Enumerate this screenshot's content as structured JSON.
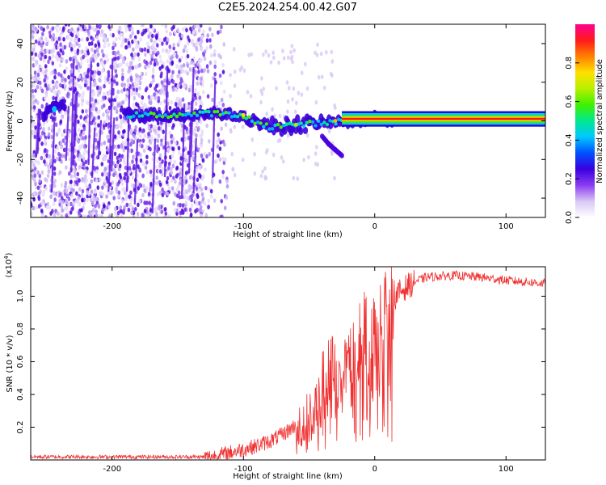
{
  "title": "C2E5.2024.254.00.42.G07",
  "chart_data": [
    {
      "type": "heatmap",
      "xlabel": "Height of straight line (km)",
      "ylabel": "Frequency (Hz)",
      "xlim": [
        -262,
        130
      ],
      "ylim": [
        -50,
        50
      ],
      "xticks": [
        -200,
        -100,
        0,
        100
      ],
      "yticks": [
        -40,
        -20,
        0,
        20,
        40
      ],
      "colorbar": {
        "label": "Normalized spectral amplitude",
        "ticks": [
          0.0,
          0.2,
          0.4,
          0.6,
          0.8
        ],
        "range": [
          0,
          1
        ],
        "colors": [
          "#ffffff",
          "#d9c8f5",
          "#8a3cf0",
          "#3a00e0",
          "#0050ff",
          "#00c8ff",
          "#00e890",
          "#40f000",
          "#b8f000",
          "#ffe000",
          "#ff8000",
          "#ff1a1a",
          "#ff0090"
        ]
      },
      "ridge": {
        "description_points_x": [
          -250,
          -240,
          -190,
          -150,
          -120,
          -100,
          -80,
          -60,
          -40,
          -20,
          0,
          15,
          130
        ],
        "description_points_y": [
          6,
          8,
          3,
          3,
          4,
          2,
          -3,
          -2,
          -1,
          0,
          1,
          1,
          1
        ],
        "branch_x": [
          -40,
          -35,
          -30,
          -25
        ],
        "branch_y": [
          -8,
          -12,
          -15,
          -18
        ]
      }
    },
    {
      "type": "line",
      "xlabel": "Height of straight line (km)",
      "ylabel": "SNR (10 * v/v)",
      "ymultiplier": "(x10",
      "ymultiplier_exp": "4",
      "ymultiplier_close": ")",
      "xlim": [
        -262,
        130
      ],
      "ylim": [
        0,
        1.18
      ],
      "xticks": [
        -200,
        -100,
        0,
        100
      ],
      "yticks": [
        0.2,
        0.4,
        0.6,
        0.8,
        1.0
      ],
      "color": "#f03030",
      "series": [
        {
          "x": [
            -262,
            -240,
            -200,
            -160,
            -130,
            -120,
            -110,
            -100,
            -90,
            -80,
            -70,
            -60,
            -50,
            -40,
            -35,
            -30,
            -25,
            -20,
            -15,
            -10,
            -5,
            0,
            5,
            10,
            15,
            20,
            25,
            30,
            40,
            60,
            80,
            100,
            130
          ],
          "y": [
            0.02,
            0.02,
            0.02,
            0.02,
            0.02,
            0.03,
            0.05,
            0.07,
            0.09,
            0.12,
            0.16,
            0.22,
            0.3,
            0.42,
            0.5,
            0.58,
            0.66,
            0.7,
            0.74,
            0.78,
            0.82,
            0.86,
            0.92,
            0.98,
            1.0,
            1.04,
            1.07,
            1.09,
            1.12,
            1.13,
            1.12,
            1.1,
            1.08
          ]
        }
      ]
    }
  ]
}
